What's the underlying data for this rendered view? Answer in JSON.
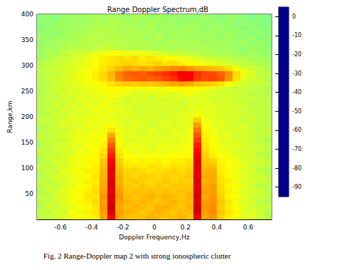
{
  "chart_data": {
    "type": "heatmap",
    "title": "Range Doppler Spectrum,dB",
    "x_label": "Doppler Frequency,Hz",
    "y_label": "Range,km",
    "caption": "Fig. 2 Range-Doppler map 2 with strong ionospheric clutter",
    "xlim": [
      -0.75,
      0.75
    ],
    "xticks": [
      -0.6,
      -0.4,
      -0.2,
      0,
      0.2,
      0.4,
      0.6
    ],
    "ylim": [
      0,
      400
    ],
    "yticks": [
      50,
      100,
      150,
      200,
      250,
      300,
      350,
      400
    ],
    "grid": false,
    "color_range": [
      -95,
      5
    ],
    "color_ticks": [
      0,
      -10,
      -20,
      -30,
      -40,
      -50,
      -60,
      -70,
      -80,
      -90
    ],
    "cell_x": [
      -0.725,
      -0.675,
      -0.625,
      -0.575,
      -0.525,
      -0.475,
      -0.425,
      -0.375,
      -0.325,
      -0.275,
      -0.225,
      -0.175,
      -0.125,
      -0.075,
      -0.025,
      0.025,
      0.075,
      0.125,
      0.175,
      0.225,
      0.275,
      0.325,
      0.375,
      0.425,
      0.475,
      0.525,
      0.575,
      0.625,
      0.675,
      0.725
    ],
    "cell_y": [
      5,
      15,
      25,
      35,
      45,
      55,
      65,
      75,
      85,
      95,
      105,
      115,
      125,
      135,
      145,
      155,
      165,
      175,
      185,
      195,
      205,
      215,
      225,
      235,
      245,
      255,
      265,
      275,
      285,
      295,
      305,
      315,
      325,
      335,
      345,
      355,
      365,
      375,
      385,
      395
    ],
    "cells": [
      [
        -39,
        -38,
        -37,
        -36,
        -34,
        -33,
        -32,
        -31,
        -24,
        -8,
        -24,
        -26,
        -27,
        -26,
        -25,
        -26,
        -27,
        -26,
        -25,
        -27,
        -6,
        -24,
        -22,
        -28,
        -31,
        -33,
        -35,
        -36,
        -38,
        -39
      ],
      [
        -38,
        -39,
        -36,
        -37,
        -33,
        -34,
        -31,
        -30,
        -23,
        -4,
        -23,
        -25,
        -26,
        -27,
        -26,
        -25,
        -26,
        -27,
        -26,
        -26,
        -3,
        -23,
        -21,
        -27,
        -30,
        -32,
        -36,
        -35,
        -37,
        -40
      ],
      [
        -40,
        -37,
        -38,
        -36,
        -35,
        -33,
        -32,
        -30,
        -22,
        -3,
        -24,
        -26,
        -25,
        -26,
        -27,
        -25,
        -25,
        -26,
        -27,
        -25,
        -3,
        -22,
        -21,
        -28,
        -31,
        -33,
        -35,
        -37,
        -38,
        -38
      ],
      [
        -39,
        -38,
        -37,
        -35,
        -34,
        -32,
        -31,
        -29,
        -23,
        -4,
        -23,
        -25,
        -26,
        -25,
        -26,
        -27,
        -26,
        -25,
        -26,
        -26,
        -4,
        -23,
        -22,
        -27,
        -30,
        -34,
        -36,
        -36,
        -39,
        -40
      ],
      [
        -38,
        -39,
        -36,
        -36,
        -33,
        -33,
        -30,
        -30,
        -22,
        -3,
        -22,
        -26,
        -27,
        -26,
        -25,
        -26,
        -25,
        -26,
        -27,
        -25,
        -3,
        -24,
        -22,
        -28,
        -32,
        -33,
        -35,
        -37,
        -38,
        -39
      ],
      [
        -40,
        -38,
        -37,
        -35,
        -34,
        -32,
        -31,
        -29,
        -23,
        -5,
        -23,
        -27,
        -26,
        -27,
        -26,
        -27,
        -26,
        -27,
        -26,
        -26,
        -4,
        -23,
        -23,
        -29,
        -31,
        -34,
        -36,
        -36,
        -37,
        -39
      ],
      [
        -39,
        -37,
        -38,
        -36,
        -35,
        -33,
        -32,
        -30,
        -24,
        -4,
        -24,
        -27,
        -28,
        -27,
        -28,
        -27,
        -28,
        -27,
        -27,
        -27,
        -5,
        -24,
        -23,
        -29,
        -32,
        -33,
        -35,
        -37,
        -39,
        -40
      ],
      [
        -38,
        -39,
        -37,
        -37,
        -34,
        -34,
        -31,
        -31,
        -24,
        -4,
        -25,
        -28,
        -27,
        -28,
        -29,
        -28,
        -27,
        -28,
        -28,
        -28,
        -4,
        -25,
        -24,
        -30,
        -31,
        -34,
        -36,
        -36,
        -38,
        -38
      ],
      [
        -40,
        -38,
        -36,
        -36,
        -35,
        -33,
        -32,
        -30,
        -25,
        -6,
        -25,
        -28,
        -29,
        -28,
        -28,
        -29,
        -28,
        -29,
        -28,
        -27,
        -5,
        -24,
        -24,
        -30,
        -33,
        -33,
        -35,
        -37,
        -37,
        -39
      ],
      [
        -39,
        -37,
        -38,
        -35,
        -34,
        -34,
        -31,
        -31,
        -25,
        -5,
        -26,
        -29,
        -28,
        -29,
        -30,
        -29,
        -29,
        -28,
        -29,
        -28,
        -5,
        -25,
        -25,
        -31,
        -32,
        -35,
        -36,
        -36,
        -39,
        -40
      ],
      [
        -38,
        -39,
        -37,
        -36,
        -35,
        -33,
        -33,
        -31,
        -26,
        -6,
        -27,
        -30,
        -30,
        -31,
        -30,
        -30,
        -31,
        -30,
        -30,
        -29,
        -5,
        -26,
        -26,
        -31,
        -33,
        -34,
        -35,
        -37,
        -38,
        -39
      ],
      [
        -40,
        -38,
        -36,
        -37,
        -34,
        -34,
        -32,
        -32,
        -27,
        -8,
        -28,
        -31,
        -32,
        -31,
        -32,
        -31,
        -32,
        -31,
        -31,
        -30,
        -5,
        -27,
        -28,
        -32,
        -33,
        -34,
        -36,
        -36,
        -37,
        -38
      ],
      [
        -39,
        -37,
        -38,
        -36,
        -35,
        -34,
        -33,
        -32,
        -29,
        -10,
        -30,
        -33,
        -33,
        -34,
        -33,
        -34,
        -33,
        -33,
        -32,
        -32,
        -6,
        -28,
        -31,
        -33,
        -34,
        -35,
        -36,
        -37,
        -39,
        -40
      ],
      [
        -38,
        -39,
        -37,
        -37,
        -36,
        -34,
        -34,
        -33,
        -30,
        -13,
        -31,
        -34,
        -35,
        -34,
        -35,
        -34,
        -35,
        -34,
        -34,
        -33,
        -8,
        -29,
        -32,
        -34,
        -35,
        -36,
        -37,
        -36,
        -38,
        -39
      ],
      [
        -40,
        -38,
        -37,
        -36,
        -35,
        -35,
        -33,
        -33,
        -31,
        -16,
        -32,
        -35,
        -34,
        -35,
        -36,
        -35,
        -34,
        -35,
        -34,
        -33,
        -10,
        -30,
        -33,
        -34,
        -35,
        -35,
        -36,
        -38,
        -37,
        -39
      ],
      [
        -39,
        -38,
        -38,
        -37,
        -36,
        -34,
        -34,
        -34,
        -32,
        -20,
        -33,
        -35,
        -36,
        -35,
        -35,
        -36,
        -35,
        -36,
        -35,
        -34,
        -13,
        -31,
        -33,
        -35,
        -36,
        -36,
        -37,
        -37,
        -39,
        -40
      ],
      [
        -38,
        -39,
        -37,
        -36,
        -35,
        -35,
        -34,
        -33,
        -33,
        -24,
        -34,
        -36,
        -35,
        -36,
        -36,
        -35,
        -36,
        -35,
        -35,
        -34,
        -16,
        -31,
        -34,
        -35,
        -35,
        -37,
        -36,
        -38,
        -38,
        -39
      ],
      [
        -40,
        -38,
        -38,
        -37,
        -36,
        -35,
        -35,
        -34,
        -34,
        -30,
        -34,
        -35,
        -36,
        -36,
        -35,
        -36,
        -36,
        -35,
        -36,
        -34,
        -19,
        -32,
        -34,
        -36,
        -36,
        -36,
        -37,
        -37,
        -39,
        -38
      ],
      [
        -39,
        -39,
        -37,
        -36,
        -36,
        -36,
        -34,
        -35,
        -34,
        -33,
        -35,
        -36,
        -35,
        -36,
        -37,
        -36,
        -35,
        -36,
        -35,
        -35,
        -23,
        -33,
        -35,
        -35,
        -37,
        -37,
        -36,
        -38,
        -38,
        -40
      ],
      [
        -38,
        -38,
        -38,
        -37,
        -35,
        -35,
        -35,
        -34,
        -35,
        -34,
        -35,
        -36,
        -36,
        -35,
        -36,
        -37,
        -36,
        -36,
        -36,
        -35,
        -28,
        -34,
        -35,
        -36,
        -36,
        -37,
        -38,
        -37,
        -39,
        -39
      ],
      [
        -40,
        -39,
        -37,
        -37,
        -36,
        -36,
        -35,
        -35,
        -34,
        -35,
        -36,
        -35,
        -36,
        -37,
        -36,
        -36,
        -37,
        -36,
        -35,
        -35,
        -33,
        -35,
        -36,
        -36,
        -37,
        -36,
        -37,
        -38,
        -38,
        -40
      ],
      [
        -39,
        -38,
        -38,
        -36,
        -37,
        -35,
        -36,
        -34,
        -35,
        -34,
        -35,
        -36,
        -37,
        -36,
        -37,
        -36,
        -36,
        -37,
        -36,
        -36,
        -35,
        -35,
        -35,
        -37,
        -36,
        -37,
        -38,
        -38,
        -39,
        -39
      ],
      [
        -40,
        -39,
        -37,
        -37,
        -36,
        -36,
        -35,
        -35,
        -34,
        -35,
        -36,
        -36,
        -36,
        -37,
        -36,
        -37,
        -36,
        -36,
        -37,
        -35,
        -35,
        -36,
        -36,
        -36,
        -37,
        -37,
        -37,
        -39,
        -38,
        -40
      ],
      [
        -39,
        -38,
        -38,
        -37,
        -37,
        -35,
        -36,
        -35,
        -35,
        -34,
        -35,
        -37,
        -36,
        -36,
        -37,
        -36,
        -37,
        -36,
        -36,
        -36,
        -36,
        -35,
        -37,
        -37,
        -36,
        -38,
        -38,
        -38,
        -39,
        -39
      ],
      [
        -40,
        -39,
        -38,
        -36,
        -36,
        -36,
        -35,
        -34,
        -34,
        -33,
        -34,
        -35,
        -36,
        -36,
        -36,
        -35,
        -35,
        -36,
        -35,
        -34,
        -35,
        -36,
        -36,
        -37,
        -37,
        -37,
        -38,
        -39,
        -39,
        -40
      ],
      [
        -39,
        -38,
        -37,
        -37,
        -36,
        -35,
        -35,
        -34,
        -33,
        -32,
        -32,
        -33,
        -34,
        -34,
        -33,
        -34,
        -33,
        -32,
        -32,
        -32,
        -33,
        -34,
        -35,
        -36,
        -37,
        -38,
        -38,
        -38,
        -39,
        -40
      ],
      [
        -40,
        -39,
        -38,
        -36,
        -36,
        -35,
        -34,
        -33,
        -32,
        -30,
        -28,
        -27,
        -28,
        -27,
        -27,
        -26,
        -25,
        -24,
        -23,
        -24,
        -26,
        -27,
        -28,
        -30,
        -33,
        -35,
        -37,
        -38,
        -38,
        -39
      ],
      [
        -39,
        -38,
        -37,
        -37,
        -35,
        -34,
        -33,
        -31,
        -29,
        -26,
        -21,
        -18,
        -17,
        -16,
        -17,
        -16,
        -14,
        -12,
        -8,
        -7,
        -13,
        -15,
        -14,
        -16,
        -22,
        -30,
        -35,
        -37,
        -38,
        -40
      ],
      [
        -40,
        -39,
        -38,
        -36,
        -36,
        -34,
        -33,
        -31,
        -29,
        -25,
        -20,
        -17,
        -16,
        -17,
        -15,
        -14,
        -12,
        -10,
        -6,
        -7,
        -12,
        -14,
        -15,
        -17,
        -21,
        -29,
        -34,
        -36,
        -39,
        -39
      ],
      [
        -39,
        -38,
        -37,
        -37,
        -36,
        -35,
        -34,
        -32,
        -30,
        -28,
        -26,
        -24,
        -25,
        -24,
        -25,
        -23,
        -22,
        -21,
        -20,
        -22,
        -24,
        -25,
        -26,
        -27,
        -30,
        -33,
        -36,
        -37,
        -38,
        -40
      ],
      [
        -40,
        -39,
        -38,
        -37,
        -36,
        -35,
        -34,
        -33,
        -31,
        -30,
        -29,
        -28,
        -29,
        -30,
        -29,
        -28,
        -30,
        -29,
        -31,
        -32,
        -33,
        -34,
        -35,
        -36,
        -37,
        -38,
        -39,
        -39,
        -40,
        -41
      ],
      [
        -41,
        -40,
        -39,
        -38,
        -37,
        -36,
        -35,
        -33,
        -31,
        -30,
        -29,
        -30,
        -29,
        -31,
        -30,
        -31,
        -32,
        -33,
        -34,
        -35,
        -36,
        -37,
        -38,
        -38,
        -39,
        -40,
        -40,
        -41,
        -41,
        -42
      ],
      [
        -42,
        -41,
        -40,
        -39,
        -38,
        -37,
        -36,
        -35,
        -34,
        -33,
        -33,
        -34,
        -35,
        -34,
        -35,
        -36,
        -37,
        -38,
        -38,
        -39,
        -39,
        -40,
        -40,
        -41,
        -41,
        -42,
        -42,
        -41,
        -42,
        -43
      ],
      [
        -42,
        -41,
        -42,
        -40,
        -40,
        -39,
        -40,
        -39,
        -38,
        -38,
        -39,
        -40,
        -39,
        -40,
        -41,
        -40,
        -40,
        -41,
        -40,
        -41,
        -41,
        -40,
        -41,
        -42,
        -41,
        -42,
        -43,
        -42,
        -43,
        -43
      ],
      [
        -43,
        -42,
        -41,
        -41,
        -40,
        -41,
        -39,
        -40,
        -39,
        -39,
        -40,
        -39,
        -41,
        -40,
        -40,
        -41,
        -41,
        -40,
        -41,
        -41,
        -40,
        -42,
        -41,
        -41,
        -42,
        -42,
        -42,
        -43,
        -42,
        -44
      ],
      [
        -42,
        -43,
        -42,
        -41,
        -41,
        -40,
        -40,
        -39,
        -40,
        -40,
        -39,
        -40,
        -40,
        -41,
        -41,
        -40,
        -41,
        -42,
        -41,
        -41,
        -42,
        -41,
        -42,
        -42,
        -41,
        -43,
        -43,
        -42,
        -44,
        -43
      ],
      [
        -43,
        -42,
        -43,
        -42,
        -41,
        -41,
        -40,
        -40,
        -39,
        -40,
        -40,
        -41,
        -40,
        -40,
        -41,
        -41,
        -42,
        -41,
        -41,
        -42,
        -42,
        -42,
        -41,
        -43,
        -42,
        -42,
        -43,
        -44,
        -43,
        -44
      ],
      [
        -44,
        -43,
        -42,
        -42,
        -42,
        -41,
        -41,
        -40,
        -40,
        -40,
        -41,
        -40,
        -41,
        -41,
        -40,
        -42,
        -41,
        -42,
        -42,
        -41,
        -42,
        -43,
        -42,
        -42,
        -43,
        -43,
        -44,
        -43,
        -44,
        -44
      ],
      [
        -43,
        -44,
        -43,
        -42,
        -42,
        -42,
        -41,
        -41,
        -41,
        -40,
        -40,
        -41,
        -41,
        -42,
        -41,
        -41,
        -42,
        -42,
        -43,
        -42,
        -42,
        -42,
        -43,
        -43,
        -42,
        -44,
        -43,
        -44,
        -44,
        -45
      ],
      [
        -44,
        -43,
        -44,
        -43,
        -42,
        -42,
        -42,
        -41,
        -41,
        -41,
        -41,
        -42,
        -41,
        -41,
        -42,
        -42,
        -42,
        -43,
        -42,
        -43,
        -43,
        -42,
        -43,
        -44,
        -43,
        -43,
        -44,
        -45,
        -44,
        -45
      ]
    ]
  }
}
